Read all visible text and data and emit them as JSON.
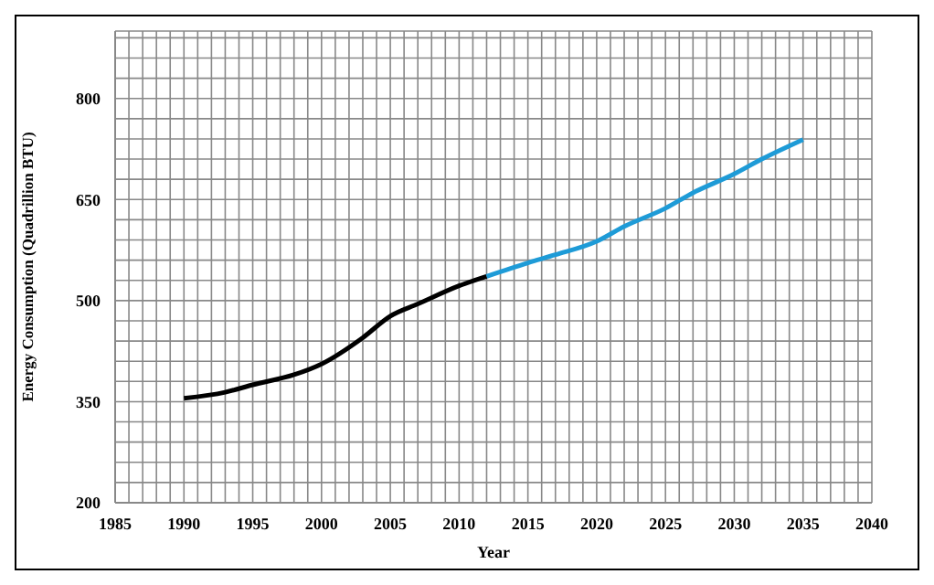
{
  "chart_data": {
    "type": "line",
    "xlabel": "Year",
    "ylabel": "Energy Consumption (Quadrillion BTU)",
    "series": [
      {
        "color": "#000000",
        "x": [
          1990,
          1993,
          1995,
          1998,
          2000,
          2003,
          2005,
          2007,
          2010,
          2012
        ],
        "values": [
          355,
          364,
          375,
          390,
          406,
          445,
          477,
          495,
          522,
          536
        ]
      },
      {
        "color": "#1e9bd7",
        "x": [
          2012,
          2015,
          2017,
          2020,
          2022,
          2025,
          2027,
          2030,
          2032,
          2035
        ],
        "values": [
          536,
          556,
          568,
          588,
          610,
          637,
          660,
          688,
          710,
          739
        ]
      }
    ],
    "xlim": [
      1985,
      2040
    ],
    "ylim": [
      200,
      900
    ],
    "xticks": [
      1985,
      {
        "value": 1986,
        "label": null
      },
      {
        "value": 1987,
        "label": null
      },
      {
        "value": 1988,
        "label": null
      },
      {
        "value": 1989,
        "label": null
      },
      1990,
      {
        "value": 1991,
        "label": null
      },
      {
        "value": 1992,
        "label": null
      },
      {
        "value": 1993,
        "label": null
      },
      {
        "value": 1994,
        "label": null
      },
      1995,
      {
        "value": 1996,
        "label": null
      },
      {
        "value": 1997,
        "label": null
      },
      {
        "value": 1998,
        "label": null
      },
      {
        "value": 1999,
        "label": null
      },
      2000,
      {
        "value": 2001,
        "label": null
      },
      {
        "value": 2002,
        "label": null
      },
      {
        "value": 2003,
        "label": null
      },
      {
        "value": 2004,
        "label": null
      },
      2005,
      {
        "value": 2006,
        "label": null
      },
      {
        "value": 2007,
        "label": null
      },
      {
        "value": 2008,
        "label": null
      },
      {
        "value": 2009,
        "label": null
      },
      2010,
      {
        "value": 2011,
        "label": null
      },
      {
        "value": 2012,
        "label": null
      },
      {
        "value": 2013,
        "label": null
      },
      {
        "value": 2014,
        "label": null
      },
      2015,
      {
        "value": 2016,
        "label": null
      },
      {
        "value": 2017,
        "label": null
      },
      {
        "value": 2018,
        "label": null
      },
      {
        "value": 2019,
        "label": null
      },
      2020,
      {
        "value": 2021,
        "label": null
      },
      {
        "value": 2022,
        "label": null
      },
      {
        "value": 2023,
        "label": null
      },
      {
        "value": 2024,
        "label": null
      },
      2025,
      {
        "value": 2026,
        "label": null
      },
      {
        "value": 2027,
        "label": null
      },
      {
        "value": 2028,
        "label": null
      },
      {
        "value": 2029,
        "label": null
      },
      2030,
      {
        "value": 2031,
        "label": null
      },
      {
        "value": 2032,
        "label": null
      },
      {
        "value": 2033,
        "label": null
      },
      {
        "value": 2034,
        "label": null
      },
      2035,
      {
        "value": 2036,
        "label": null
      },
      {
        "value": 2037,
        "label": null
      },
      {
        "value": 2038,
        "label": null
      },
      {
        "value": 2039,
        "label": null
      },
      2040
    ],
    "yticks": [
      200,
      {
        "value": 230,
        "label": null
      },
      {
        "value": 260,
        "label": null
      },
      {
        "value": 290,
        "label": null
      },
      {
        "value": 320,
        "label": null
      },
      350,
      {
        "value": 380,
        "label": null
      },
      {
        "value": 410,
        "label": null
      },
      {
        "value": 440,
        "label": null
      },
      {
        "value": 470,
        "label": null
      },
      500,
      {
        "value": 530,
        "label": null
      },
      {
        "value": 560,
        "label": null
      },
      {
        "value": 590,
        "label": null
      },
      {
        "value": 620,
        "label": null
      },
      650,
      {
        "value": 680,
        "label": null
      },
      {
        "value": 710,
        "label": null
      },
      {
        "value": 740,
        "label": null
      },
      {
        "value": 770,
        "label": null
      },
      800,
      {
        "value": 830,
        "label": null
      },
      {
        "value": 860,
        "label": null
      },
      {
        "value": 890,
        "label": null
      }
    ],
    "grid": true,
    "marker": "none",
    "line_style": "solid"
  }
}
